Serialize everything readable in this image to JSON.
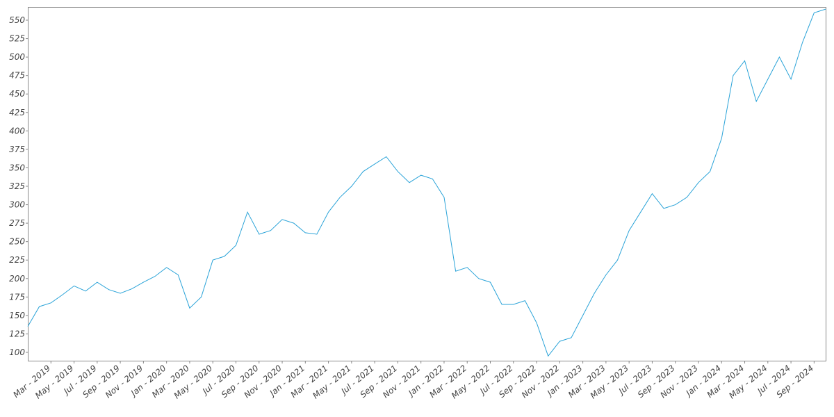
{
  "chart_data": {
    "type": "line",
    "x": [
      "2019-01",
      "2019-02",
      "2019-03",
      "2019-04",
      "2019-05",
      "2019-06",
      "2019-07",
      "2019-08",
      "2019-09",
      "2019-10",
      "2019-11",
      "2019-12",
      "2020-01",
      "2020-02",
      "2020-03",
      "2020-04",
      "2020-05",
      "2020-06",
      "2020-07",
      "2020-08",
      "2020-09",
      "2020-10",
      "2020-11",
      "2020-12",
      "2021-01",
      "2021-02",
      "2021-03",
      "2021-04",
      "2021-05",
      "2021-06",
      "2021-07",
      "2021-08",
      "2021-09",
      "2021-10",
      "2021-11",
      "2021-12",
      "2022-01",
      "2022-02",
      "2022-03",
      "2022-04",
      "2022-05",
      "2022-06",
      "2022-07",
      "2022-08",
      "2022-09",
      "2022-10",
      "2022-11",
      "2022-12",
      "2023-01",
      "2023-02",
      "2023-03",
      "2023-04",
      "2023-05",
      "2023-06",
      "2023-07",
      "2023-08",
      "2023-09",
      "2023-10",
      "2023-11",
      "2023-12",
      "2024-01",
      "2024-02",
      "2024-03",
      "2024-04",
      "2024-05",
      "2024-06",
      "2024-07",
      "2024-08",
      "2024-09",
      "2024-10"
    ],
    "series": [
      {
        "color": "#2aa3d8",
        "values": [
          135,
          162,
          167,
          178,
          190,
          183,
          195,
          185,
          180,
          186,
          195,
          203,
          215,
          205,
          160,
          175,
          225,
          230,
          245,
          290,
          260,
          265,
          280,
          275,
          262,
          260,
          290,
          310,
          325,
          345,
          355,
          365,
          345,
          330,
          340,
          335,
          310,
          210,
          215,
          200,
          195,
          165,
          165,
          170,
          140,
          95,
          115,
          120,
          150,
          180,
          205,
          225,
          265,
          290,
          315,
          295,
          300,
          310,
          330,
          345,
          390,
          475,
          495,
          440,
          470,
          500,
          470,
          520,
          560,
          565
        ]
      }
    ],
    "xlim": [
      "2019-01",
      "2024-10"
    ],
    "xticks": [
      {
        "value": "2019-03",
        "label": "Mar - 2019"
      },
      {
        "value": "2019-05",
        "label": "May - 2019"
      },
      {
        "value": "2019-07",
        "label": "Jul - 2019"
      },
      {
        "value": "2019-09",
        "label": "Sep - 2019"
      },
      {
        "value": "2019-11",
        "label": "Nov - 2019"
      },
      {
        "value": "2020-01",
        "label": "Jan - 2020"
      },
      {
        "value": "2020-03",
        "label": "Mar - 2020"
      },
      {
        "value": "2020-05",
        "label": "May - 2020"
      },
      {
        "value": "2020-07",
        "label": "Jul - 2020"
      },
      {
        "value": "2020-09",
        "label": "Sep - 2020"
      },
      {
        "value": "2020-11",
        "label": "Nov - 2020"
      },
      {
        "value": "2021-01",
        "label": "Jan - 2021"
      },
      {
        "value": "2021-03",
        "label": "Mar - 2021"
      },
      {
        "value": "2021-05",
        "label": "May - 2021"
      },
      {
        "value": "2021-07",
        "label": "Jul - 2021"
      },
      {
        "value": "2021-09",
        "label": "Sep - 2021"
      },
      {
        "value": "2021-11",
        "label": "Nov - 2021"
      },
      {
        "value": "2022-01",
        "label": "Jan - 2022"
      },
      {
        "value": "2022-03",
        "label": "Mar - 2022"
      },
      {
        "value": "2022-05",
        "label": "May - 2022"
      },
      {
        "value": "2022-07",
        "label": "Jul - 2022"
      },
      {
        "value": "2022-09",
        "label": "Sep - 2022"
      },
      {
        "value": "2022-11",
        "label": "Nov - 2022"
      },
      {
        "value": "2023-01",
        "label": "Jan - 2023"
      },
      {
        "value": "2023-03",
        "label": "Mar - 2023"
      },
      {
        "value": "2023-05",
        "label": "May - 2023"
      },
      {
        "value": "2023-07",
        "label": "Jul - 2023"
      },
      {
        "value": "2023-09",
        "label": "Sep - 2023"
      },
      {
        "value": "2023-11",
        "label": "Nov - 2023"
      },
      {
        "value": "2024-01",
        "label": "Jan - 2024"
      },
      {
        "value": "2024-03",
        "label": "Mar - 2024"
      },
      {
        "value": "2024-05",
        "label": "May - 2024"
      },
      {
        "value": "2024-07",
        "label": "Jul - 2024"
      },
      {
        "value": "2024-09",
        "label": "Sep - 2024"
      }
    ],
    "ylim": [
      88.7,
      567.9
    ],
    "yticks": [
      100,
      125,
      150,
      175,
      200,
      225,
      250,
      275,
      300,
      325,
      350,
      375,
      400,
      425,
      450,
      475,
      500,
      525,
      550
    ],
    "grid": false
  }
}
